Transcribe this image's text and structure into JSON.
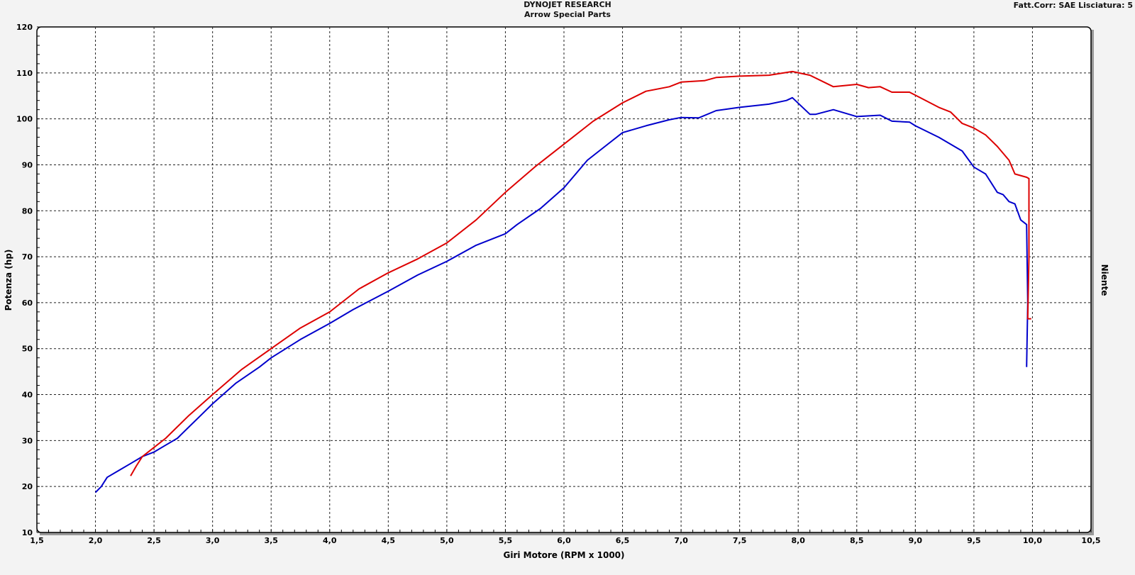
{
  "header": {
    "title": "DYNOJET RESEARCH",
    "subtitle": "Arrow Special Parts",
    "settings": "Fatt.Corr: SAE  Lisciatura: 5"
  },
  "chart_data": {
    "type": "line",
    "xlabel": "Giri Motore (RPM x 1000)",
    "ylabel": "Potenza (hp)",
    "right_label": "Niente",
    "xlim": [
      1.5,
      10.5
    ],
    "ylim": [
      10,
      120
    ],
    "x_ticks": [
      "1,5",
      "2,0",
      "2,5",
      "3,0",
      "3,5",
      "4,0",
      "4,5",
      "5,0",
      "5,5",
      "6,0",
      "6,5",
      "7,0",
      "7,5",
      "8,0",
      "8,5",
      "9,0",
      "9,5",
      "10,0",
      "10,5"
    ],
    "y_ticks": [
      "10",
      "20",
      "30",
      "40",
      "50",
      "60",
      "70",
      "80",
      "90",
      "100",
      "110",
      "120"
    ],
    "grid": true,
    "series": [
      {
        "color": "#0000cc",
        "points": [
          [
            2.0,
            18.7
          ],
          [
            2.05,
            20
          ],
          [
            2.1,
            22
          ],
          [
            2.2,
            23.5
          ],
          [
            2.3,
            25
          ],
          [
            2.4,
            26.5
          ],
          [
            2.5,
            27.5
          ],
          [
            2.6,
            29
          ],
          [
            2.7,
            30.5
          ],
          [
            2.8,
            33
          ],
          [
            2.9,
            35.5
          ],
          [
            3.0,
            38
          ],
          [
            3.2,
            42.5
          ],
          [
            3.4,
            46
          ],
          [
            3.5,
            48
          ],
          [
            3.75,
            52
          ],
          [
            4.0,
            55.5
          ],
          [
            4.2,
            58.5
          ],
          [
            4.5,
            62.5
          ],
          [
            4.75,
            66
          ],
          [
            5.0,
            69
          ],
          [
            5.25,
            72.5
          ],
          [
            5.5,
            75
          ],
          [
            5.6,
            77
          ],
          [
            5.8,
            80.5
          ],
          [
            6.0,
            85
          ],
          [
            6.2,
            91
          ],
          [
            6.35,
            94
          ],
          [
            6.5,
            97
          ],
          [
            6.7,
            98.5
          ],
          [
            6.9,
            99.8
          ],
          [
            7.0,
            100.3
          ],
          [
            7.15,
            100.2
          ],
          [
            7.3,
            101.8
          ],
          [
            7.5,
            102.5
          ],
          [
            7.75,
            103.2
          ],
          [
            7.9,
            104
          ],
          [
            7.95,
            104.6
          ],
          [
            8.1,
            101
          ],
          [
            8.15,
            101
          ],
          [
            8.3,
            102
          ],
          [
            8.5,
            100.5
          ],
          [
            8.7,
            100.8
          ],
          [
            8.8,
            99.5
          ],
          [
            8.95,
            99.3
          ],
          [
            9.0,
            98.5
          ],
          [
            9.2,
            96
          ],
          [
            9.4,
            93
          ],
          [
            9.5,
            89.5
          ],
          [
            9.6,
            88
          ],
          [
            9.7,
            84
          ],
          [
            9.75,
            83.5
          ],
          [
            9.8,
            82
          ],
          [
            9.85,
            81.5
          ],
          [
            9.9,
            78
          ],
          [
            9.95,
            77
          ],
          [
            9.96,
            60
          ],
          [
            9.95,
            46
          ]
        ]
      },
      {
        "color": "#dd0000",
        "points": [
          [
            2.3,
            22.3
          ],
          [
            2.35,
            24.5
          ],
          [
            2.4,
            26.5
          ],
          [
            2.5,
            28.5
          ],
          [
            2.6,
            30.5
          ],
          [
            2.7,
            33
          ],
          [
            2.8,
            35.5
          ],
          [
            3.0,
            40
          ],
          [
            3.25,
            45.5
          ],
          [
            3.5,
            50
          ],
          [
            3.75,
            54.5
          ],
          [
            4.0,
            58
          ],
          [
            4.25,
            63
          ],
          [
            4.5,
            66.5
          ],
          [
            4.75,
            69.5
          ],
          [
            5.0,
            73
          ],
          [
            5.25,
            78
          ],
          [
            5.5,
            84
          ],
          [
            5.75,
            89.5
          ],
          [
            6.0,
            94.5
          ],
          [
            6.25,
            99.5
          ],
          [
            6.5,
            103.5
          ],
          [
            6.7,
            106
          ],
          [
            6.9,
            107
          ],
          [
            7.0,
            108
          ],
          [
            7.2,
            108.3
          ],
          [
            7.3,
            109
          ],
          [
            7.5,
            109.3
          ],
          [
            7.75,
            109.5
          ],
          [
            7.95,
            110.3
          ],
          [
            8.1,
            109.5
          ],
          [
            8.3,
            107
          ],
          [
            8.5,
            107.5
          ],
          [
            8.6,
            106.8
          ],
          [
            8.7,
            107
          ],
          [
            8.8,
            105.8
          ],
          [
            8.95,
            105.8
          ],
          [
            9.05,
            104.5
          ],
          [
            9.2,
            102.5
          ],
          [
            9.3,
            101.5
          ],
          [
            9.4,
            99
          ],
          [
            9.5,
            98
          ],
          [
            9.6,
            96.5
          ],
          [
            9.7,
            94
          ],
          [
            9.8,
            91
          ],
          [
            9.85,
            88
          ],
          [
            9.95,
            87.3
          ],
          [
            9.97,
            87
          ],
          [
            9.97,
            70
          ],
          [
            9.96,
            56.5
          ],
          [
            9.99,
            56.5
          ]
        ]
      }
    ]
  }
}
